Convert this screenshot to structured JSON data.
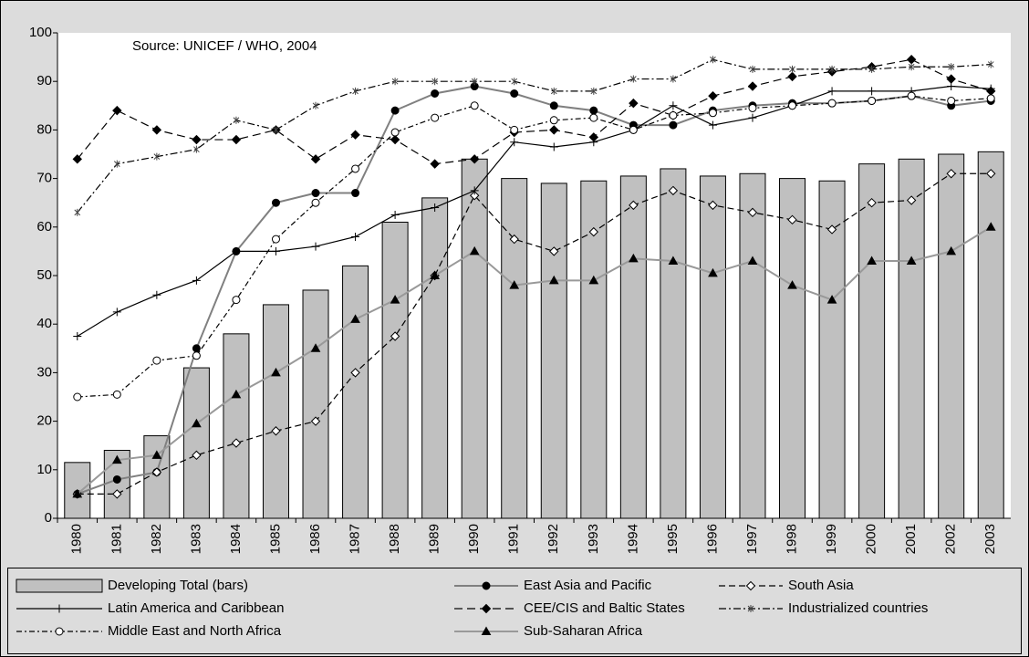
{
  "chart_data": {
    "type": "bar-line",
    "annotation": "Source: UNICEF / WHO,  2004",
    "categories": [
      "1980",
      "1981",
      "1982",
      "1983",
      "1984",
      "1985",
      "1986",
      "1987",
      "1988",
      "1989",
      "1990",
      "1991",
      "1992",
      "1993",
      "1994",
      "1995",
      "1996",
      "1997",
      "1998",
      "1999",
      "2000",
      "2001",
      "2002",
      "2003"
    ],
    "ylim": [
      0,
      100
    ],
    "yticks": [
      0,
      10,
      20,
      30,
      40,
      50,
      60,
      70,
      80,
      90,
      100
    ],
    "grid": false,
    "legend": "bottom",
    "series": [
      {
        "name": "Developing Total (bars)",
        "kind": "bar",
        "color": "#c0c0c0",
        "values": [
          11.5,
          14,
          17,
          31,
          38,
          44,
          47,
          52,
          61,
          66,
          74,
          70,
          69,
          69.5,
          70.5,
          72,
          70.5,
          71,
          70,
          69.5,
          73,
          74,
          75,
          75.5
        ]
      },
      {
        "name": "East Asia and Pacific",
        "kind": "line",
        "color": "#808080",
        "dash": "none",
        "marker": "circle-filled",
        "values": [
          5,
          8,
          9.5,
          35,
          55,
          65,
          67,
          67,
          84,
          87.5,
          89,
          87.5,
          85,
          84,
          81,
          81,
          84,
          85,
          85.5,
          85.5,
          86,
          87,
          85,
          86
        ]
      },
      {
        "name": "South Asia",
        "kind": "line",
        "color": "#000000",
        "dash": "7 4",
        "marker": "diamond-open",
        "values": [
          5,
          5,
          9.5,
          13,
          15.5,
          18,
          20,
          30,
          37.5,
          50,
          66.5,
          57.5,
          55,
          59,
          64.5,
          67.5,
          64.5,
          63,
          61.5,
          59.5,
          65,
          65.5,
          71,
          71
        ]
      },
      {
        "name": "Latin America and Caribbean",
        "kind": "line",
        "color": "#000000",
        "dash": "none",
        "marker": "plus",
        "values": [
          37.5,
          42.5,
          46,
          49,
          55,
          55,
          56,
          58,
          62.5,
          64,
          67.5,
          77.5,
          76.5,
          77.5,
          80,
          85,
          81,
          82.5,
          85,
          88,
          88,
          88,
          89,
          88.5
        ]
      },
      {
        "name": "CEE/CIS and Baltic States",
        "kind": "line",
        "color": "#000000",
        "dash": "9 5",
        "marker": "diamond-filled",
        "values": [
          74,
          84,
          80,
          78,
          78,
          80,
          74,
          79,
          78,
          73,
          74,
          79.5,
          80,
          78.5,
          85.5,
          83,
          87,
          89,
          91,
          92,
          93,
          94.5,
          90.5,
          88
        ]
      },
      {
        "name": "Industrialized countries",
        "kind": "line",
        "color": "#000000",
        "dash": "8 3 2 3",
        "marker": "star",
        "values": [
          63,
          73,
          74.5,
          76,
          82,
          80,
          85,
          88,
          90,
          90,
          90,
          90,
          88,
          88,
          90.5,
          90.5,
          94.5,
          92.5,
          92.5,
          92.5,
          92.5,
          93,
          93,
          93.5
        ]
      },
      {
        "name": "Middle East and North Africa",
        "kind": "line",
        "color": "#000000",
        "dash": "6 3 2 3",
        "marker": "circle-open",
        "values": [
          25,
          25.5,
          32.5,
          33.5,
          45,
          57.5,
          65,
          72,
          79.5,
          82.5,
          85,
          80,
          82,
          82.5,
          80,
          83,
          83.5,
          84.5,
          85,
          85.5,
          86,
          87,
          86,
          86.5
        ]
      },
      {
        "name": "Sub-Saharan Africa",
        "kind": "line",
        "color": "#999999",
        "dash": "none",
        "marker": "triangle",
        "values": [
          5,
          12,
          13,
          19.5,
          25.5,
          30,
          35,
          41,
          45,
          50,
          55,
          48,
          49,
          49,
          53.5,
          53,
          50.5,
          53,
          48,
          45,
          53,
          53,
          55,
          60
        ]
      }
    ]
  }
}
